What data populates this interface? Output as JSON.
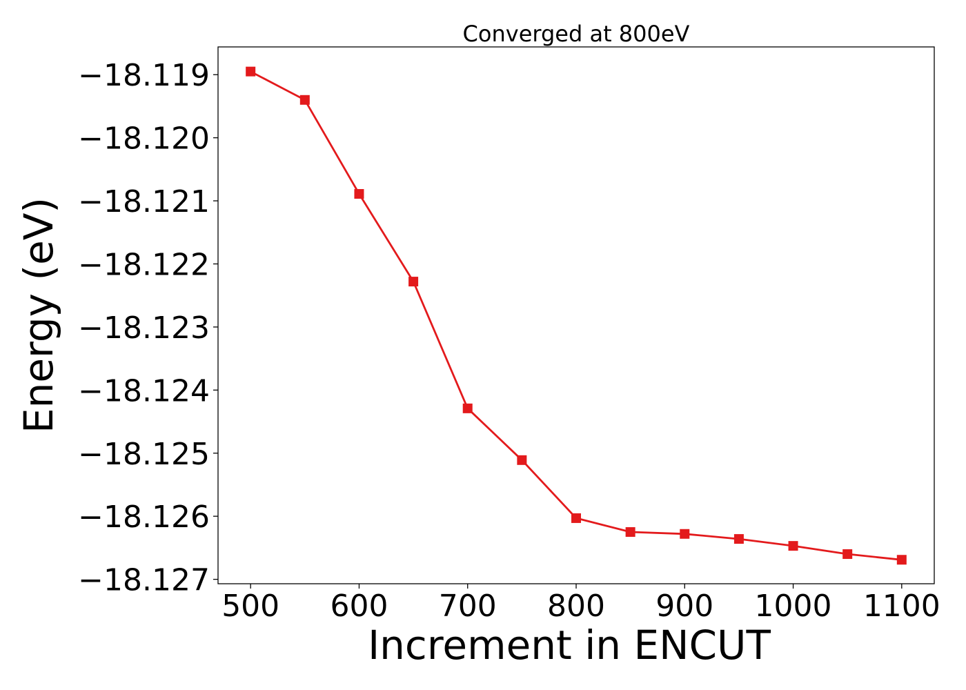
{
  "chart_data": {
    "type": "line",
    "title": "Converged at 800eV",
    "xlabel": "Increment in ENCUT",
    "ylabel": "Energy (eV)",
    "x": [
      500,
      550,
      600,
      650,
      700,
      750,
      800,
      850,
      900,
      950,
      1000,
      1050,
      1100
    ],
    "series": [
      {
        "values": [
          -18.11895,
          -18.1194,
          -18.12089,
          -18.12228,
          -18.12429,
          -18.12511,
          -18.12603,
          -18.12625,
          -18.12628,
          -18.12636,
          -18.12647,
          -18.1266,
          -18.12669
        ],
        "color": "#e31a1c",
        "marker": "square"
      }
    ],
    "xlim": [
      470,
      1130
    ],
    "ylim": [
      -18.12707,
      -18.11856
    ],
    "xticks": [
      500,
      600,
      700,
      800,
      900,
      1000,
      1100
    ],
    "xtick_labels": [
      "500",
      "600",
      "700",
      "800",
      "900",
      "1000",
      "1100"
    ],
    "yticks": [
      -18.119,
      -18.12,
      -18.121,
      -18.122,
      -18.123,
      -18.124,
      -18.125,
      -18.126,
      -18.127
    ],
    "ytick_labels": [
      "−18.119",
      "−18.120",
      "−18.121",
      "−18.122",
      "−18.123",
      "−18.124",
      "−18.125",
      "−18.126",
      "−18.127"
    ],
    "grid": false,
    "legend": false
  }
}
